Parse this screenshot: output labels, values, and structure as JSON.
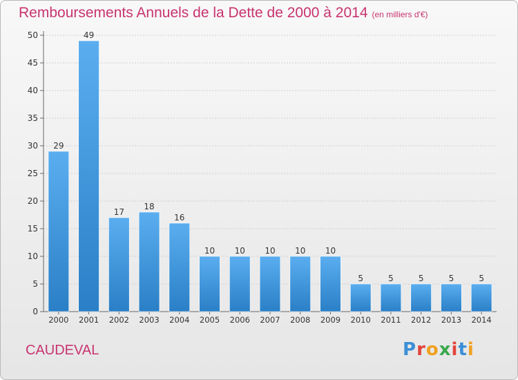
{
  "header": {
    "title": "Remboursements Annuels de la Dette de 2000 à 2014",
    "unit": "(en milliers d'€)"
  },
  "footer": {
    "commune": "CAUDEVAL",
    "logo_letters": [
      "P",
      "r",
      "o",
      "x",
      "i",
      "t",
      "i"
    ],
    "logo_colors": [
      "#3b8fd6",
      "#e2453c",
      "#f0a020",
      "#3aa84a",
      "#e2453c",
      "#3b8fd6",
      "#f0a020"
    ]
  },
  "chart_data": {
    "type": "bar",
    "categories": [
      "2000",
      "2001",
      "2002",
      "2003",
      "2004",
      "2005",
      "2006",
      "2007",
      "2008",
      "2009",
      "2010",
      "2011",
      "2012",
      "2013",
      "2014"
    ],
    "values": [
      29,
      49,
      17,
      18,
      16,
      10,
      10,
      10,
      10,
      10,
      5,
      5,
      5,
      5,
      5
    ],
    "title": "Remboursements Annuels de la Dette de 2000 à 2014",
    "xlabel": "",
    "ylabel": "",
    "ylim": [
      0,
      50
    ],
    "yticks": [
      0,
      5,
      10,
      15,
      20,
      25,
      30,
      35,
      40,
      45,
      50
    ],
    "grid": true,
    "bar_color_top": "#5aaef0",
    "bar_color_bottom": "#2a7fc6",
    "title_color": "#c8336e"
  }
}
